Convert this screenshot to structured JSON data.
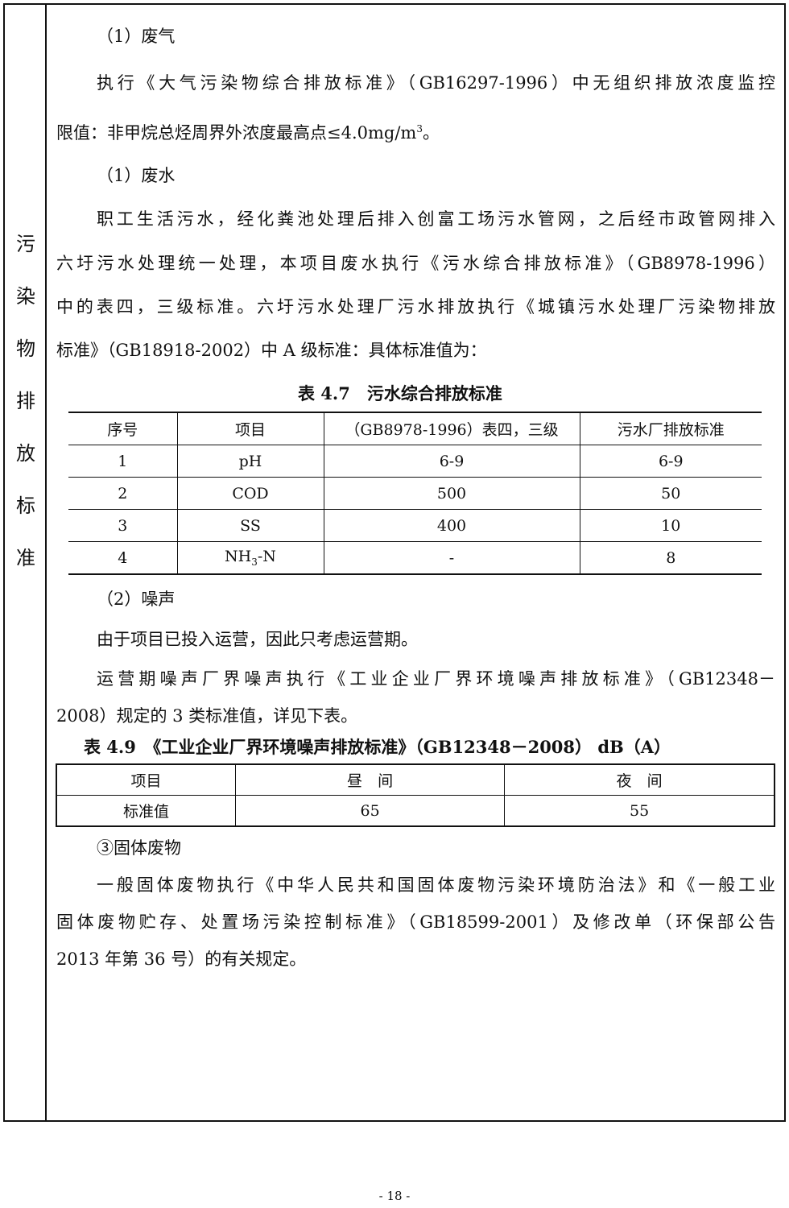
{
  "side_label": [
    "污",
    "染",
    "物",
    "排",
    "放",
    "标",
    "准"
  ],
  "air": {
    "heading": "（1）废气",
    "line1": "执行《大气污染物综合排放标准》（GB16297-1996）中无组织排放浓度监控",
    "line2": "限值：非甲烷总烃周界外浓度最高点≤4.0mg/m",
    "line2_sup": "3",
    "line2_end": "。"
  },
  "water": {
    "heading": "（1）废水",
    "lines": [
      "职工生活污水，经化粪池处理后排入创富工场污水管网，之后经市政管网排入",
      "六圩污水处理统一处理，本项目废水执行《污水综合排放标准》（GB8978-1996）",
      "中的表四，三级标准。六圩污水处理厂污水排放执行《城镇污水处理厂污染物排放",
      "标准》（GB18918-2002）中 A 级标准：具体标准值为："
    ]
  },
  "table47": {
    "caption": "表 4.7　污水综合排放标准",
    "headers": [
      "序号",
      "项目",
      "（GB8978-1996）表四，三级",
      "污水厂排放标准"
    ],
    "rows": [
      [
        "1",
        "pH",
        "6-9",
        "6-9"
      ],
      [
        "2",
        "COD",
        "500",
        "50"
      ],
      [
        "3",
        "SS",
        "400",
        "10"
      ],
      [
        "4",
        "NH",
        "-",
        "8"
      ]
    ],
    "nh3_sub": "3",
    "nh3_tail": "-N"
  },
  "noise": {
    "heading": "（2）噪声",
    "line1": "由于项目已投入运营，因此只考虑运营期。",
    "line2": "运营期噪声厂界噪声执行《工业企业厂界环境噪声排放标准》（GB12348－",
    "line3": "2008）规定的 3 类标准值，详见下表。"
  },
  "table49": {
    "caption": "表 4.9　《工业企业厂界环境噪声排放标准》（GB12348－2008） dB（A）",
    "headers": [
      "项目",
      "昼　间",
      "夜　间"
    ],
    "rows": [
      [
        "标准值",
        "65",
        "55"
      ]
    ]
  },
  "solid": {
    "heading": "③固体废物",
    "lines": [
      "一般固体废物执行《中华人民共和国固体废物污染环境防治法》和《一般工业",
      "固体废物贮存、处置场污染控制标准》（GB18599-2001）及修改单（环保部公告",
      "2013 年第 36 号）的有关规定。"
    ]
  },
  "page_number": "- 18 -"
}
